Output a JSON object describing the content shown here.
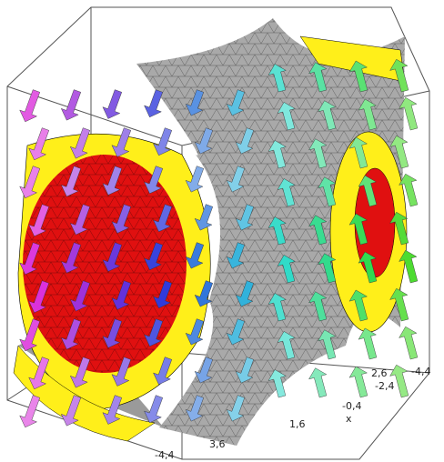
{
  "tick_labels": [
    "-4,4",
    "2,6",
    "-2,4",
    "-0,4",
    "1,6",
    "3,6",
    "-4,4"
  ],
  "axis_title": "x"
}
